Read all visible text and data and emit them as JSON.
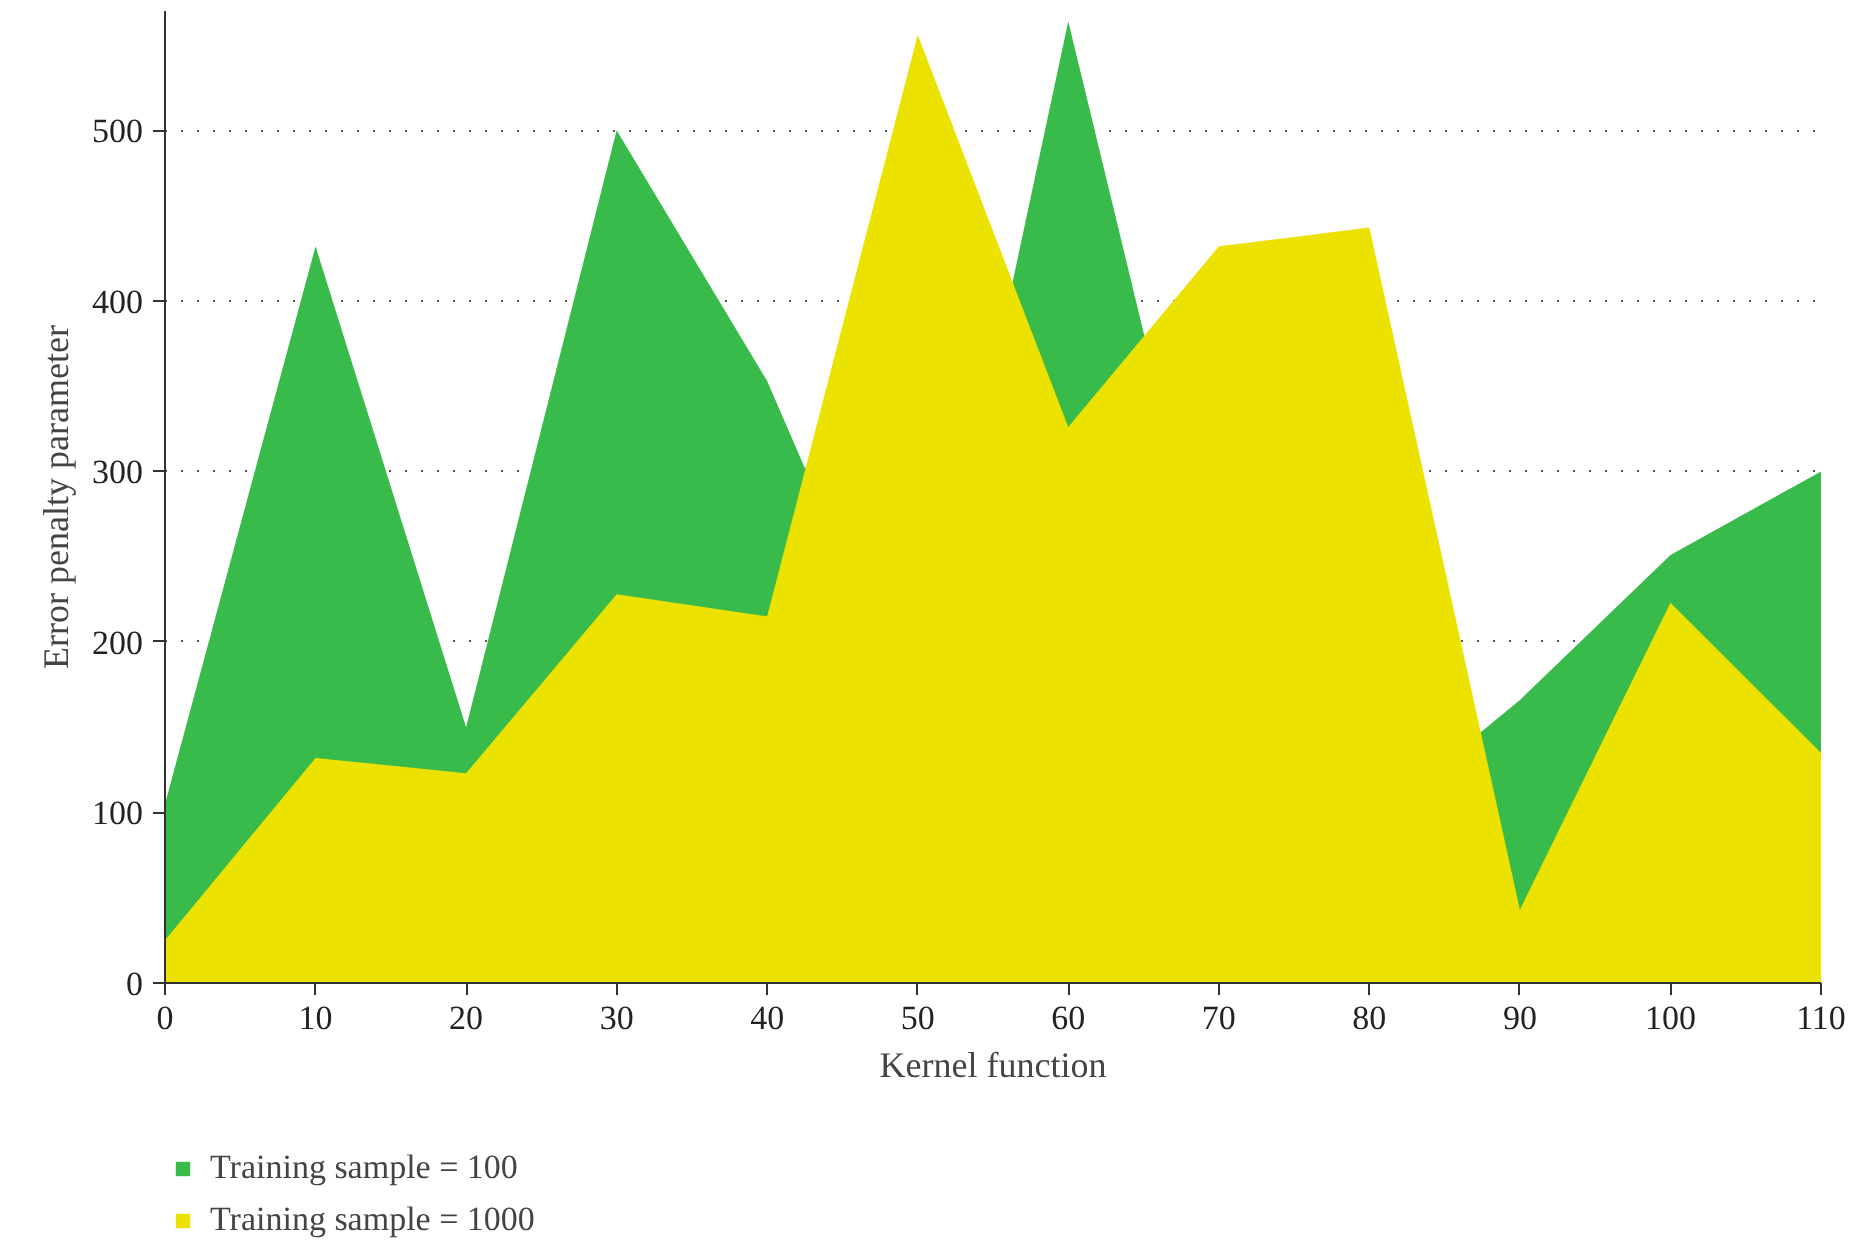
{
  "chart_data": {
    "type": "area",
    "xlabel": "Kernel function",
    "ylabel": "Error penalty parameter",
    "x": [
      0,
      10,
      20,
      30,
      40,
      50,
      60,
      70,
      80,
      90,
      100,
      110
    ],
    "series": [
      {
        "name": "Training sample = 100",
        "color": "#38bb4a",
        "x": [
          0,
          10,
          20,
          30,
          40,
          42.5,
          56.3,
          60,
          65.1,
          87.4,
          90,
          100,
          110
        ],
        "values": [
          105,
          432,
          150,
          500,
          353,
          302,
          411,
          564,
          378,
          147,
          166,
          251,
          300
        ]
      },
      {
        "name": "Training sample = 1000",
        "color": "#ece200",
        "values": [
          25,
          132,
          123,
          228,
          215,
          556,
          326,
          432,
          443,
          43,
          223,
          135
        ]
      }
    ],
    "xlim": [
      0,
      110
    ],
    "ylim": [
      0,
      570
    ],
    "xticks": [
      0,
      10,
      20,
      30,
      40,
      50,
      60,
      70,
      80,
      90,
      100,
      110
    ],
    "yticks": [
      0,
      100,
      200,
      300,
      400,
      500
    ],
    "grid": "y",
    "legend": "bottom left"
  }
}
